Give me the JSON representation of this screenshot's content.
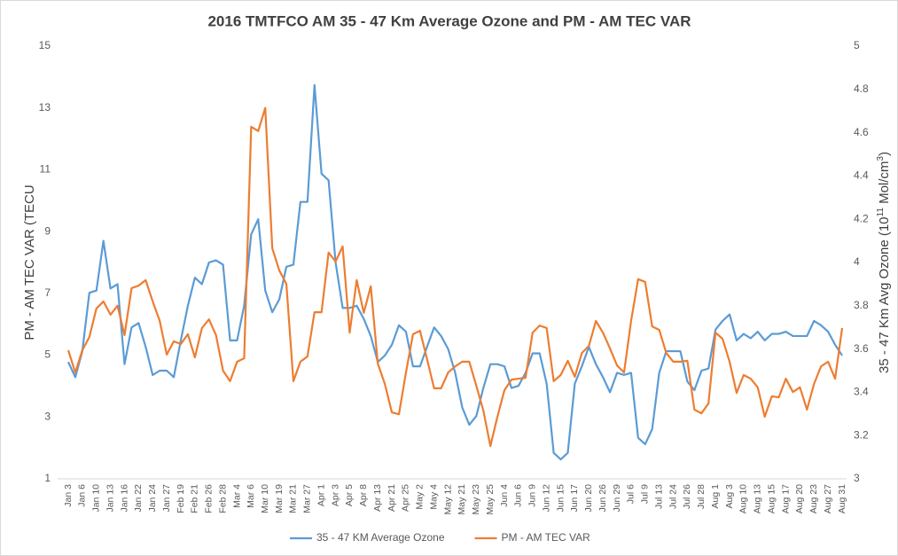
{
  "chart_data": {
    "type": "line",
    "title": "2016 TMTFCO AM 35 - 47 Km Average Ozone and PM - AM TEC VAR",
    "ylabel": "PM - AM TEC VAR (TECU",
    "y2label": [
      "35 - 47 Km Avg Ozone (10",
      "11",
      " Mol/cm",
      "3",
      ")"
    ],
    "categories": [
      "Jan 3",
      null,
      "Jan 6",
      null,
      "Jan 10",
      null,
      "Jan 13",
      null,
      "Jan 16",
      null,
      "Jan 22",
      null,
      "Jan 24",
      null,
      "Jan 27",
      null,
      "Feb 19",
      null,
      "Feb 21",
      null,
      "Feb 26",
      null,
      "Feb 28",
      null,
      "Mar 4",
      null,
      "Mar 6",
      null,
      "Mar 10",
      null,
      "Mar 19",
      null,
      "Mar 21",
      null,
      "Mar 27",
      null,
      "Apr 1",
      null,
      "Apr 3",
      null,
      "Apr 5",
      null,
      "Apr 8",
      null,
      "Apr 13",
      null,
      "Apr 21",
      null,
      "Apr 25",
      null,
      "May 2",
      null,
      "May 4",
      null,
      "May 12",
      null,
      "May 21",
      null,
      "May 23",
      null,
      "May 25",
      null,
      "Jun 4",
      null,
      "Jun 6",
      null,
      "Jun 9",
      null,
      "Jun 12",
      null,
      "Jun 15",
      null,
      "Jun 17",
      null,
      "Jun 20",
      null,
      "Jun 26",
      null,
      "Jun 29",
      null,
      "Jul 6",
      null,
      "Jul 9",
      null,
      "Jul 13",
      null,
      "Jul 24",
      null,
      "Jul 26",
      null,
      "Jul 28",
      null,
      "Aug 1",
      null,
      "Aug 3",
      null,
      "Aug 10",
      null,
      "Aug 13",
      null,
      "Aug 15",
      null,
      "Aug 17",
      null,
      "Aug 20",
      null,
      "Aug 23",
      null,
      "Aug 27",
      null,
      "Aug 31"
    ],
    "series": [
      {
        "name": "35 - 47 KM Average Ozone",
        "color": "#5b9bd5",
        "axis": "y2",
        "values": [
          3.54,
          3.47,
          3.59,
          3.86,
          3.87,
          4.1,
          3.88,
          3.9,
          3.53,
          3.7,
          3.72,
          3.61,
          3.48,
          3.5,
          3.5,
          3.47,
          3.64,
          3.8,
          3.93,
          3.9,
          4.0,
          4.01,
          3.99,
          3.64,
          3.64,
          3.8,
          4.13,
          4.2,
          3.87,
          3.77,
          3.83,
          3.98,
          3.99,
          4.28,
          4.28,
          4.82,
          4.41,
          4.38,
          4.0,
          3.79,
          3.79,
          3.8,
          3.74,
          3.66,
          3.54,
          3.57,
          3.62,
          3.71,
          3.68,
          3.52,
          3.52,
          3.61,
          3.7,
          3.66,
          3.6,
          3.49,
          3.33,
          3.25,
          3.29,
          3.42,
          3.53,
          3.53,
          3.52,
          3.42,
          3.43,
          3.49,
          3.58,
          3.58,
          3.44,
          3.12,
          3.09,
          3.12,
          3.44,
          3.52,
          3.61,
          3.53,
          3.47,
          3.4,
          3.49,
          3.48,
          3.49,
          3.19,
          3.16,
          3.23,
          3.49,
          3.59,
          3.59,
          3.59,
          3.45,
          3.41,
          3.5,
          3.51,
          3.69,
          3.73,
          3.76,
          3.64,
          3.67,
          3.65,
          3.68,
          3.64,
          3.67,
          3.67,
          3.68,
          3.66,
          3.66,
          3.66,
          3.73,
          3.71,
          3.68,
          3.62,
          3.57
        ]
      },
      {
        "name": "PM - AM TEC VAR",
        "color": "#ed7d31",
        "values": [
          5.16,
          4.44,
          5.16,
          5.59,
          6.51,
          6.74,
          6.31,
          6.6,
          5.65,
          7.17,
          7.25,
          7.43,
          6.74,
          6.11,
          5.02,
          5.45,
          5.36,
          5.68,
          4.93,
          5.88,
          6.16,
          5.65,
          4.5,
          4.16,
          4.79,
          4.9,
          12.39,
          12.25,
          13.0,
          8.46,
          7.74,
          7.31,
          4.16,
          4.79,
          4.96,
          6.39,
          6.39,
          8.32,
          8.03,
          8.52,
          5.73,
          7.43,
          6.37,
          7.23,
          4.73,
          4.07,
          3.15,
          3.09,
          4.44,
          5.68,
          5.79,
          4.87,
          3.93,
          3.93,
          4.44,
          4.64,
          4.79,
          4.79,
          4.01,
          3.21,
          2.06,
          3.01,
          3.87,
          4.21,
          4.24,
          4.27,
          5.73,
          5.96,
          5.88,
          4.16,
          4.36,
          4.82,
          4.3,
          5.07,
          5.3,
          6.11,
          5.73,
          5.22,
          4.67,
          4.44,
          6.11,
          7.46,
          7.37,
          5.93,
          5.82,
          5.07,
          4.79,
          4.79,
          4.82,
          3.24,
          3.12,
          3.44,
          5.73,
          5.53,
          4.79,
          3.78,
          4.36,
          4.24,
          3.96,
          3.01,
          3.67,
          3.64,
          4.24,
          3.81,
          3.96,
          3.24,
          4.07,
          4.64,
          4.79,
          4.24,
          5.88
        ]
      }
    ],
    "ylim": [
      1,
      15
    ],
    "yticks": [
      1,
      3,
      5,
      7,
      9,
      11,
      13,
      15
    ],
    "y2lim": [
      3,
      5
    ],
    "y2ticks": [
      3,
      3.2,
      3.4,
      3.6,
      3.8,
      4,
      4.2,
      4.4,
      4.6,
      4.8,
      5
    ],
    "grid": false
  }
}
